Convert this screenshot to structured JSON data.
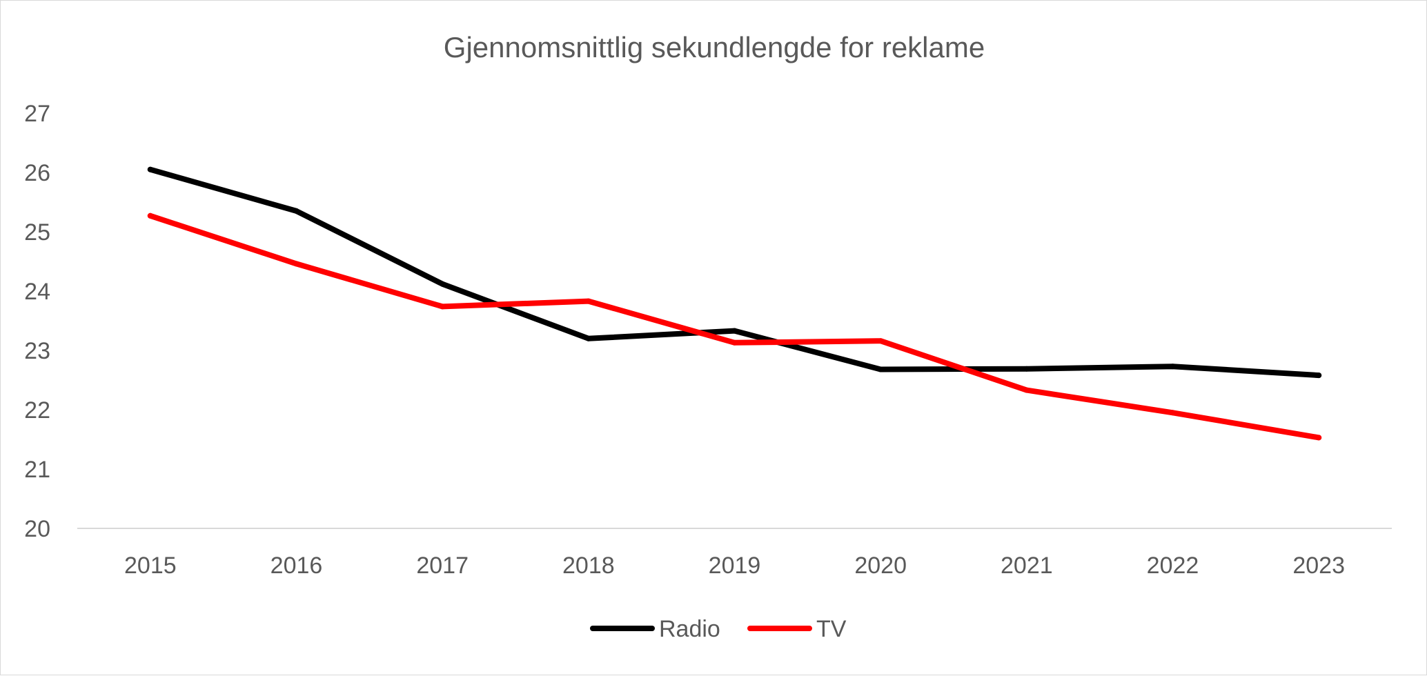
{
  "chart_data": {
    "type": "line",
    "title": "Gjennomsnittlig sekundlengde for reklame",
    "xlabel": "",
    "ylabel": "",
    "categories": [
      "2015",
      "2016",
      "2017",
      "2018",
      "2019",
      "2020",
      "2021",
      "2022",
      "2023"
    ],
    "ylim": [
      20,
      27
    ],
    "yticks": [
      "20",
      "21",
      "22",
      "23",
      "24",
      "25",
      "26",
      "27"
    ],
    "grid": false,
    "legend_position": "bottom",
    "series": [
      {
        "name": "Radio",
        "color": "#000000",
        "values": [
          26.05,
          25.35,
          24.12,
          23.2,
          23.33,
          22.68,
          22.69,
          22.73,
          22.58
        ]
      },
      {
        "name": "TV",
        "color": "#ff0000",
        "values": [
          25.27,
          24.46,
          23.74,
          23.83,
          23.13,
          23.16,
          22.33,
          21.95,
          21.53
        ]
      }
    ]
  }
}
